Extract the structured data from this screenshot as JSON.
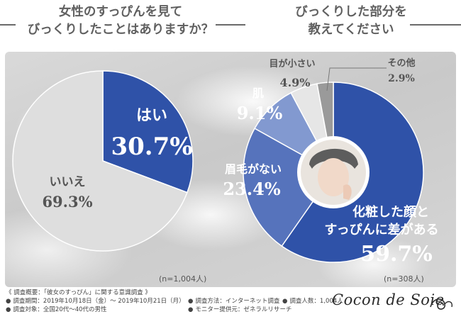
{
  "headings": {
    "left": [
      "女性のすっぴんを見て",
      "びっくりしたことはありますか？"
    ],
    "right": [
      "びっくりした部分を",
      "教えてください"
    ]
  },
  "colors": {
    "blue": "#2f52a8",
    "gray": "#dedede",
    "blue_shades": [
      "#2f52a8",
      "#5673bc",
      "#8299d0",
      "#e6e6e6",
      "#9a9a9a"
    ]
  },
  "chart_data": [
    {
      "type": "pie",
      "title": "女性のすっぴんを見てびっくりしたことはありますか？",
      "slices": [
        {
          "label": "はい",
          "value": 30.7,
          "display": "30.7%"
        },
        {
          "label": "いいえ",
          "value": 69.3,
          "display": "69.3%"
        }
      ],
      "note": "(n=1,004人)"
    },
    {
      "type": "pie",
      "title": "びっくりした部分を教えてください",
      "slices": [
        {
          "label": "化粧した顔とすっぴんに差がある",
          "value": 59.7,
          "display": "59.7%"
        },
        {
          "label": "眉毛がない",
          "value": 23.4,
          "display": "23.4%"
        },
        {
          "label": "肌",
          "value": 9.1,
          "display": "9.1%"
        },
        {
          "label": "目が小さい",
          "value": 4.9,
          "display": "4.9%"
        },
        {
          "label": "その他",
          "value": 2.9,
          "display": "2.9%"
        }
      ],
      "note": "(n=308人)"
    }
  ],
  "survey": {
    "summary": "《 調査概要：「彼女のすっぴん」に関する意識調査 》",
    "period": "調査期間：2019年10月18日（金）～ 2019年10月21日（月）",
    "method": "調査方法：インターネット調査",
    "count": "調査人数：1,004人",
    "target": "調査対象：全国20代～40代の男性",
    "provider": "モニター提供元：ゼネラルリサーチ",
    "bullet": "●"
  },
  "logo": {
    "text": "Cocon de Soie"
  }
}
